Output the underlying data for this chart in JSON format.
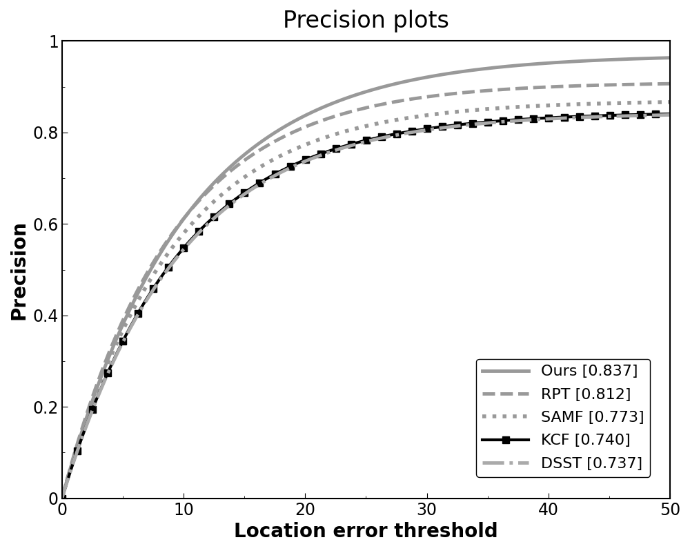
{
  "title": "Precision plots",
  "xlabel": "Location error threshold",
  "ylabel": "Precision",
  "xlim": [
    0,
    50
  ],
  "ylim": [
    0,
    1
  ],
  "xticks": [
    0,
    10,
    20,
    30,
    40,
    50
  ],
  "yticks": [
    0,
    0.2,
    0.4,
    0.6,
    0.8,
    1
  ],
  "title_fontsize": 24,
  "label_fontsize": 20,
  "tick_fontsize": 17,
  "legend_fontsize": 16,
  "series": [
    {
      "label": "Ours [0.837]",
      "color": "#999999",
      "linestyle": "solid",
      "linewidth": 3.5,
      "marker": null,
      "score_at_20": 0.837,
      "asymptote": 0.97
    },
    {
      "label": "RPT [0.812]",
      "color": "#999999",
      "linestyle": "dashed",
      "linewidth": 3.5,
      "marker": null,
      "score_at_20": 0.812,
      "asymptote": 0.91
    },
    {
      "label": "SAMF [0.773]",
      "color": "#999999",
      "linestyle": "dotted",
      "linewidth": 4.0,
      "marker": null,
      "score_at_20": 0.773,
      "asymptote": 0.87
    },
    {
      "label": "KCF [0.740]",
      "color": "#000000",
      "linestyle": "solid",
      "linewidth": 3.0,
      "marker": "s",
      "markersize": 7,
      "markevery": 25,
      "score_at_20": 0.74,
      "asymptote": 0.845
    },
    {
      "label": "DSST [0.737]",
      "color": "#aaaaaa",
      "linestyle": "dashdot",
      "linewidth": 3.5,
      "marker": null,
      "score_at_20": 0.737,
      "asymptote": 0.843
    }
  ],
  "background_color": "#ffffff",
  "grid": false
}
